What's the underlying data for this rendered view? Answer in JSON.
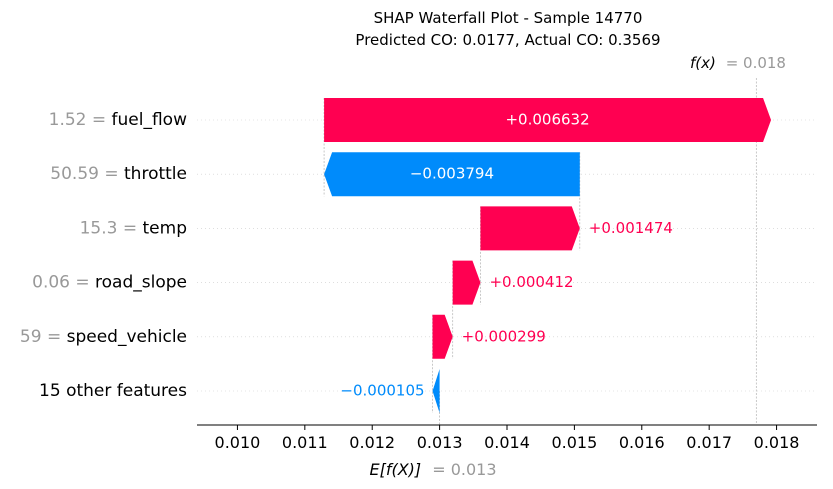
{
  "chart_data": {
    "type": "bar",
    "subtype": "shap-waterfall",
    "title": "SHAP Waterfall Plot - Sample 14770",
    "subtitle": "Predicted CO: 0.0177, Actual CO: 0.3569",
    "base_value": 0.013,
    "output_value": 0.0177,
    "base_value_label": {
      "name": "E[f(X)]",
      "value_text": "= 0.013"
    },
    "output_value_label": {
      "name": "f(x)",
      "value_text": "= 0.018"
    },
    "features": [
      {
        "value": "1.52",
        "name": "fuel_flow",
        "shap": 0.006632,
        "label": "+0.006632"
      },
      {
        "value": "50.59",
        "name": "throttle",
        "shap": -0.003794,
        "label": "−0.003794"
      },
      {
        "value": "15.3",
        "name": "temp",
        "shap": 0.001474,
        "label": "+0.001474"
      },
      {
        "value": "0.06",
        "name": "road_slope",
        "shap": 0.000412,
        "label": "+0.000412"
      },
      {
        "value": "59",
        "name": "speed_vehicle",
        "shap": 0.000299,
        "label": "+0.000299"
      },
      {
        "value": "",
        "name": "15 other features",
        "shap": -0.000105,
        "label": "−0.000105"
      }
    ],
    "xlim": [
      0.0094,
      0.0186
    ],
    "xticks": [
      "0.010",
      "0.011",
      "0.012",
      "0.013",
      "0.014",
      "0.015",
      "0.016",
      "0.017",
      "0.018"
    ],
    "colors": {
      "positive": "#ff0051",
      "negative": "#008bfb",
      "value_gray": "#999999"
    }
  }
}
